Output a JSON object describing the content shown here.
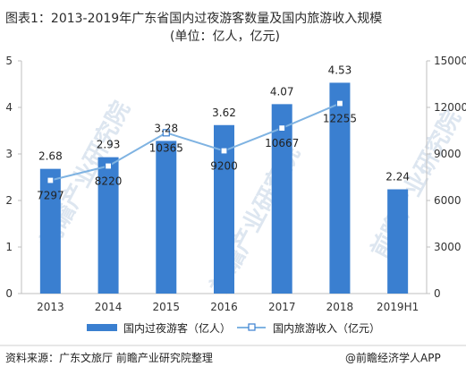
{
  "title": {
    "line1": "图表1：2013-2019年广东省国内过夜游客数量及国内旅游收入规模",
    "line2": "(单位：亿人，亿元)"
  },
  "footer": {
    "source": "资料来源：广东文旅厅 前瞻产业研究院整理",
    "brand": "@前瞻经济学人APP"
  },
  "watermark": "前瞻产业研究院",
  "colors": {
    "bar": "#3a7fd0",
    "line": "#7fb3e2",
    "marker_fill": "#ffffff",
    "axis": "#bfbfbf"
  },
  "chart_data": {
    "type": "bar",
    "categories": [
      "2013",
      "2014",
      "2015",
      "2016",
      "2017",
      "2018",
      "2019H1"
    ],
    "left_axis": {
      "ylim": [
        0,
        5
      ],
      "ticks": [
        "0",
        "1",
        "2",
        "3",
        "4",
        "5"
      ]
    },
    "right_axis": {
      "ylim": [
        0,
        15000
      ],
      "ticks": [
        "0",
        "3000",
        "6000",
        "9000",
        "12000",
        "15000"
      ]
    },
    "grid": false,
    "legend_position": "bottom",
    "series": [
      {
        "name": "国内过夜游客（亿人）",
        "type": "bar",
        "axis": "left",
        "values": [
          2.68,
          2.93,
          3.28,
          3.62,
          4.07,
          4.53,
          2.24
        ],
        "labels": [
          "2.68",
          "2.93",
          "3.28",
          "3.62",
          "4.07",
          "4.53",
          "2.24"
        ]
      },
      {
        "name": "国内旅游收入（亿元）",
        "type": "line",
        "axis": "right",
        "values": [
          7297,
          8220,
          10365,
          9200,
          10667,
          12255,
          null
        ],
        "labels": [
          "7297",
          "8220",
          "10365",
          "9200",
          "10667",
          "12255",
          ""
        ]
      }
    ]
  }
}
